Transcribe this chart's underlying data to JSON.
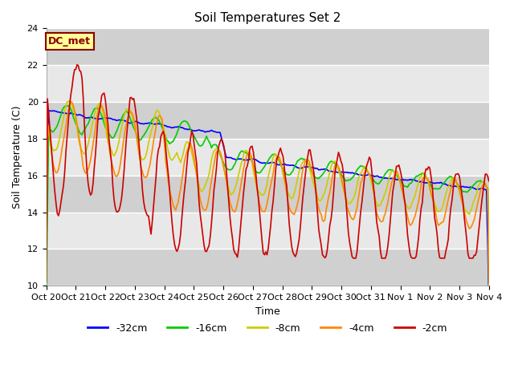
{
  "title": "Soil Temperatures Set 2",
  "xlabel": "Time",
  "ylabel": "Soil Temperature (C)",
  "ylim": [
    10,
    24
  ],
  "yticks": [
    10,
    12,
    14,
    16,
    18,
    20,
    22,
    24
  ],
  "xlim": [
    0,
    15
  ],
  "xtick_labels": [
    "Oct 20",
    "Oct 21",
    "Oct 22",
    "Oct 23",
    "Oct 24",
    "Oct 25",
    "Oct 26",
    "Oct 27",
    "Oct 28",
    "Oct 29",
    "Oct 30",
    "Oct 31",
    "Nov 1",
    "Nov 2",
    "Nov 3",
    "Nov 4"
  ],
  "legend_labels": [
    "-32cm",
    "-16cm",
    "-8cm",
    "-4cm",
    "-2cm"
  ],
  "legend_colors": [
    "#0000ff",
    "#00cc00",
    "#cccc00",
    "#ff8800",
    "#cc0000"
  ],
  "annotation_text": "DC_met",
  "annotation_color": "#8b0000",
  "annotation_bg": "#ffff99",
  "light_band_color": "#e8e8e8",
  "dark_band_color": "#d0d0d0",
  "fig_bg": "#ffffff",
  "title_fontsize": 11,
  "axis_fontsize": 9,
  "tick_fontsize": 8,
  "legend_fontsize": 9
}
